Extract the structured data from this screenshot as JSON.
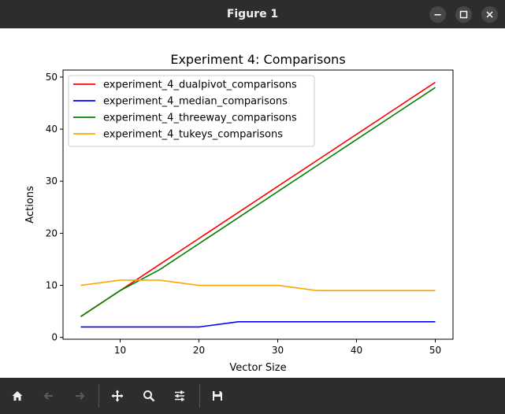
{
  "window": {
    "title": "Figure 1"
  },
  "chart_data": {
    "type": "line",
    "title": "Experiment 4: Comparisons",
    "xlabel": "Vector Size",
    "ylabel": "Actions",
    "x": [
      5,
      10,
      15,
      20,
      25,
      30,
      35,
      40,
      45,
      50
    ],
    "xlim": [
      2.75,
      52.25
    ],
    "ylim": [
      -0.35,
      51.35
    ],
    "xticks": [
      10,
      20,
      30,
      40,
      50
    ],
    "yticks": [
      0,
      10,
      20,
      30,
      40,
      50
    ],
    "grid": false,
    "legend_position": "upper-left",
    "series": [
      {
        "name": "experiment_4_dualpivot_comparisons",
        "color": "#ff0000",
        "values": [
          4,
          9,
          14,
          19,
          24,
          29,
          34,
          39,
          44,
          49
        ]
      },
      {
        "name": "experiment_4_median_comparisons",
        "color": "#0000ff",
        "values": [
          2,
          2,
          2,
          2,
          3,
          3,
          3,
          3,
          3,
          3
        ]
      },
      {
        "name": "experiment_4_threeway_comparisons",
        "color": "#008000",
        "values": [
          4,
          9,
          13,
          18,
          23,
          28,
          33,
          38,
          43,
          48
        ]
      },
      {
        "name": "experiment_4_tukeys_comparisons",
        "color": "#ffa500",
        "values": [
          10,
          11,
          11,
          10,
          10,
          10,
          9,
          9,
          9,
          9
        ]
      }
    ]
  },
  "toolbar": {
    "icons": [
      "home-icon",
      "back-arrow-icon",
      "forward-arrow-icon",
      "move-icon",
      "zoom-icon",
      "configure-subplots-icon",
      "save-icon"
    ]
  }
}
